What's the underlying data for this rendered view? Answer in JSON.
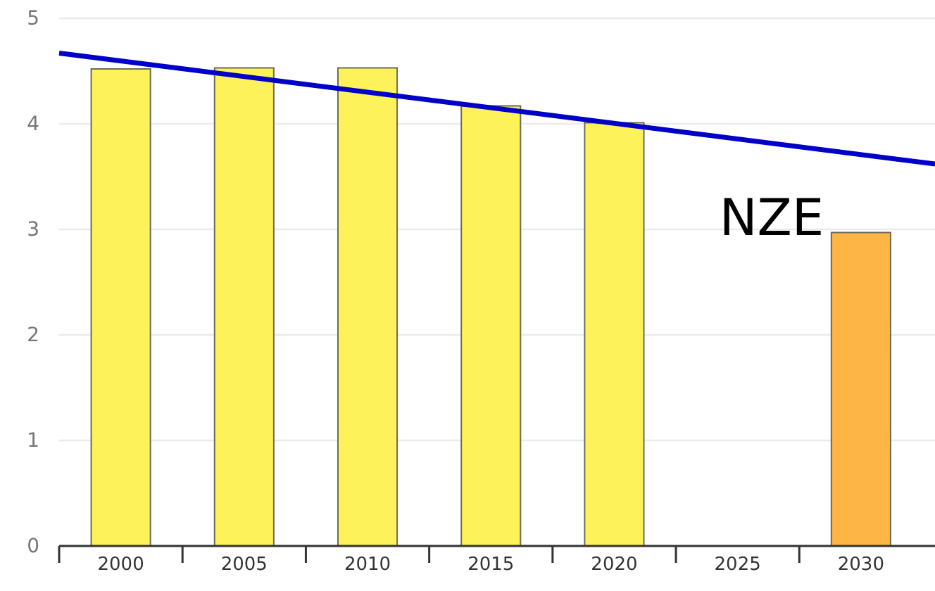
{
  "chart_data": {
    "type": "bar",
    "x": [
      2000,
      2005,
      2010,
      2015,
      2020,
      2030
    ],
    "values": [
      4.52,
      4.53,
      4.53,
      4.17,
      4.01,
      2.97
    ],
    "colors": [
      "#fdf25a",
      "#fdf25a",
      "#fdf25a",
      "#fdf25a",
      "#fdf25a",
      "#fdb545"
    ],
    "series": [
      {
        "type": "line",
        "color": "#0000c8",
        "x": [
          1997.5,
          2033
        ],
        "values": [
          4.67,
          3.62
        ]
      }
    ],
    "annotations": [
      "NZE"
    ],
    "xlim": [
      1997.5,
      2033
    ],
    "xticks": [
      {
        "value": 1997.5,
        "label": null
      },
      2000,
      {
        "value": 2002.5,
        "label": null
      },
      2005,
      {
        "value": 2007.5,
        "label": null
      },
      2010,
      {
        "value": 2012.5,
        "label": null
      },
      2015,
      {
        "value": 2017.5,
        "label": null
      },
      2020,
      {
        "value": 2022.5,
        "label": null
      },
      2025,
      {
        "value": 2027.5,
        "label": null
      },
      2030
    ],
    "ylim": [
      0,
      5
    ],
    "yticks": [
      0,
      1,
      2,
      3,
      4,
      5
    ],
    "grid": "y"
  }
}
